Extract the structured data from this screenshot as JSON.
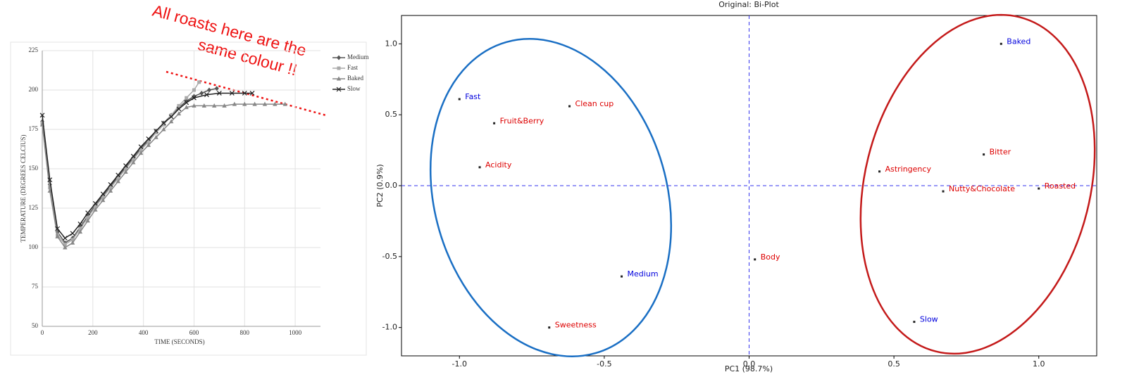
{
  "chart_data": [
    {
      "type": "line",
      "xlabel": "TIME (SECONDS)",
      "ylabel": "TEMPERATURE (DEGREES CELCIUS)",
      "annotation": [
        "All roasts here are  the",
        "same colour !!"
      ],
      "xlim": [
        0,
        1100
      ],
      "xticks": [
        0,
        200,
        400,
        600,
        800,
        1000
      ],
      "ylim": [
        50,
        225
      ],
      "yticks": [
        50,
        75,
        100,
        125,
        150,
        175,
        200,
        225
      ],
      "grid": true,
      "legend": "upper right",
      "series": [
        {
          "name": "Medium",
          "color": "#555555",
          "marker": "diamond",
          "x": [
            0,
            30,
            60,
            90,
            120,
            150,
            180,
            210,
            240,
            270,
            300,
            330,
            360,
            390,
            420,
            450,
            480,
            510,
            540,
            570,
            600,
            630,
            660,
            690
          ],
          "values": [
            180,
            140,
            110,
            103,
            106,
            113,
            120,
            127,
            133,
            139,
            145,
            151,
            157,
            163,
            168,
            174,
            179,
            184,
            189,
            193,
            196,
            198,
            200,
            201
          ]
        },
        {
          "name": "Fast",
          "color": "#aaaaaa",
          "marker": "square",
          "x": [
            0,
            30,
            60,
            90,
            120,
            150,
            180,
            210,
            240,
            270,
            300,
            330,
            360,
            390,
            420,
            450,
            480,
            510,
            540,
            570,
            600,
            620
          ],
          "values": [
            179,
            138,
            108,
            102,
            105,
            112,
            119,
            126,
            132,
            138,
            144,
            150,
            156,
            162,
            167,
            173,
            178,
            184,
            190,
            195,
            200,
            205
          ]
        },
        {
          "name": "Baked",
          "color": "#888888",
          "marker": "triangle",
          "x": [
            0,
            30,
            60,
            90,
            120,
            150,
            180,
            210,
            240,
            270,
            300,
            330,
            360,
            390,
            420,
            450,
            480,
            510,
            540,
            570,
            600,
            640,
            680,
            720,
            760,
            800,
            840,
            880,
            920,
            960
          ],
          "values": [
            178,
            136,
            107,
            100,
            103,
            110,
            117,
            124,
            130,
            136,
            142,
            148,
            154,
            160,
            165,
            170,
            175,
            180,
            185,
            189,
            190,
            190,
            190,
            190,
            191,
            191,
            191,
            191,
            191,
            191
          ]
        },
        {
          "name": "Slow",
          "color": "#222222",
          "marker": "x",
          "x": [
            0,
            30,
            60,
            90,
            120,
            150,
            180,
            210,
            240,
            270,
            300,
            330,
            360,
            390,
            420,
            450,
            480,
            510,
            540,
            570,
            600,
            650,
            700,
            750,
            800,
            830
          ],
          "values": [
            184,
            143,
            112,
            106,
            109,
            115,
            122,
            128,
            134,
            140,
            146,
            152,
            158,
            164,
            169,
            174,
            179,
            183,
            188,
            192,
            195,
            197,
            198,
            198,
            198,
            198
          ]
        }
      ]
    },
    {
      "type": "scatter",
      "title": "Original: Bi-Plot",
      "xlabel": "PC1 (98.7%)",
      "ylabel": "PC2 (0.9%)",
      "xlim": [
        -1.2,
        1.2
      ],
      "xticks": [
        {
          "value": -1,
          "label": "-1.0"
        },
        {
          "value": -0.5,
          "label": "-0.5"
        },
        {
          "value": 0,
          "label": "0.0"
        },
        {
          "value": 0.5,
          "label": "0.5"
        },
        {
          "value": 1,
          "label": "1.0"
        }
      ],
      "ylim": [
        -1.2,
        1.2
      ],
      "yticks": [
        {
          "value": -1,
          "label": "-1.0"
        },
        {
          "value": -0.5,
          "label": "-0.5"
        },
        {
          "value": 0,
          "label": "0.0"
        },
        {
          "value": 0.5,
          "label": "0.5"
        },
        {
          "value": 1,
          "label": "1.0"
        }
      ],
      "points": [
        {
          "label": "Fast",
          "x": -1.0,
          "y": 0.61,
          "color": "#0000dd"
        },
        {
          "label": "Clean cup",
          "x": -0.62,
          "y": 0.56,
          "color": "#dd0000"
        },
        {
          "label": "Fruit&Berry",
          "x": -0.88,
          "y": 0.44,
          "color": "#dd0000"
        },
        {
          "label": "Acidity",
          "x": -0.93,
          "y": 0.13,
          "color": "#dd0000"
        },
        {
          "label": "Medium",
          "x": -0.44,
          "y": -0.64,
          "color": "#0000dd"
        },
        {
          "label": "Sweetness",
          "x": -0.69,
          "y": -1.0,
          "color": "#dd0000"
        },
        {
          "label": "Body",
          "x": 0.02,
          "y": -0.52,
          "color": "#dd0000"
        },
        {
          "label": "Baked",
          "x": 0.87,
          "y": 1.0,
          "color": "#0000dd"
        },
        {
          "label": "Bitter",
          "x": 0.81,
          "y": 0.22,
          "color": "#dd0000"
        },
        {
          "label": "Astringency",
          "x": 0.45,
          "y": 0.1,
          "color": "#dd0000"
        },
        {
          "label": "Nutty&Chocolate",
          "x": 0.67,
          "y": -0.04,
          "color": "#dd0000"
        },
        {
          "label": "Roasted",
          "x": 1.0,
          "y": -0.02,
          "color": "#dd0000"
        },
        {
          "label": "Slow",
          "x": 0.57,
          "y": -0.96,
          "color": "#0000dd"
        }
      ]
    }
  ]
}
